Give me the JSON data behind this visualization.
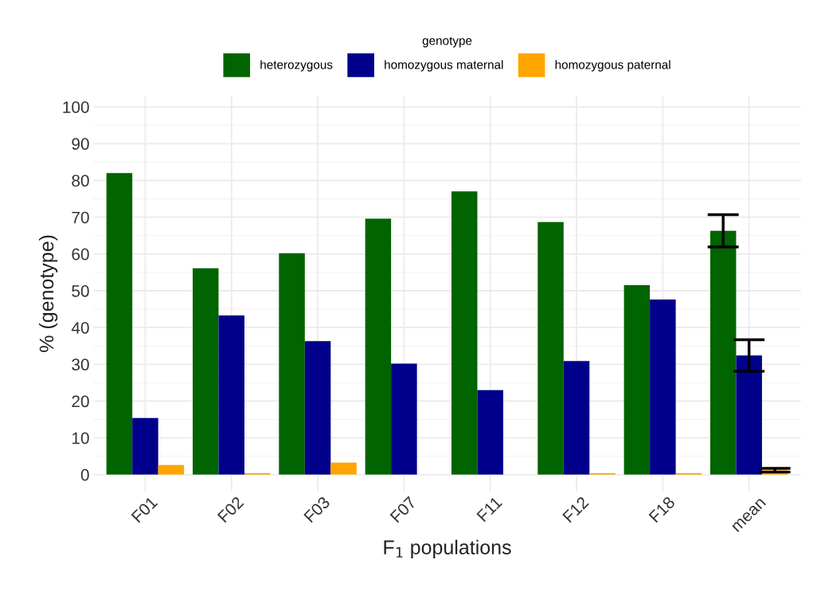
{
  "chart_data": {
    "type": "bar",
    "xlabel": "F$_{1}$ populations",
    "ylabel": "% (genotype)",
    "legend_title": "genotype",
    "categories": [
      "F01",
      "F02",
      "F03",
      "F07",
      "F11",
      "F12",
      "F18",
      "mean"
    ],
    "series": [
      {
        "name": "heterozygous",
        "color": "#006400",
        "values": [
          82.0,
          56.1,
          60.2,
          69.6,
          77.0,
          68.7,
          51.5,
          66.3
        ],
        "errors": [
          null,
          null,
          null,
          null,
          null,
          null,
          null,
          4.4
        ]
      },
      {
        "name": "homozygous maternal",
        "color": "#00008b",
        "values": [
          15.4,
          43.3,
          36.3,
          30.2,
          23.0,
          30.9,
          47.6,
          32.4
        ],
        "errors": [
          null,
          null,
          null,
          null,
          null,
          null,
          null,
          4.3
        ]
      },
      {
        "name": "homozygous paternal",
        "color": "#ffa500",
        "values": [
          2.6,
          0.4,
          3.3,
          0,
          0,
          0.4,
          0.4,
          1.2
        ],
        "errors": [
          null,
          null,
          null,
          null,
          null,
          null,
          null,
          0.5
        ]
      }
    ],
    "ylim": [
      -4.5,
      103
    ],
    "yticks": [
      0,
      10,
      20,
      30,
      40,
      50,
      60,
      70,
      80,
      90,
      100
    ],
    "grid": true,
    "legend": "top"
  }
}
